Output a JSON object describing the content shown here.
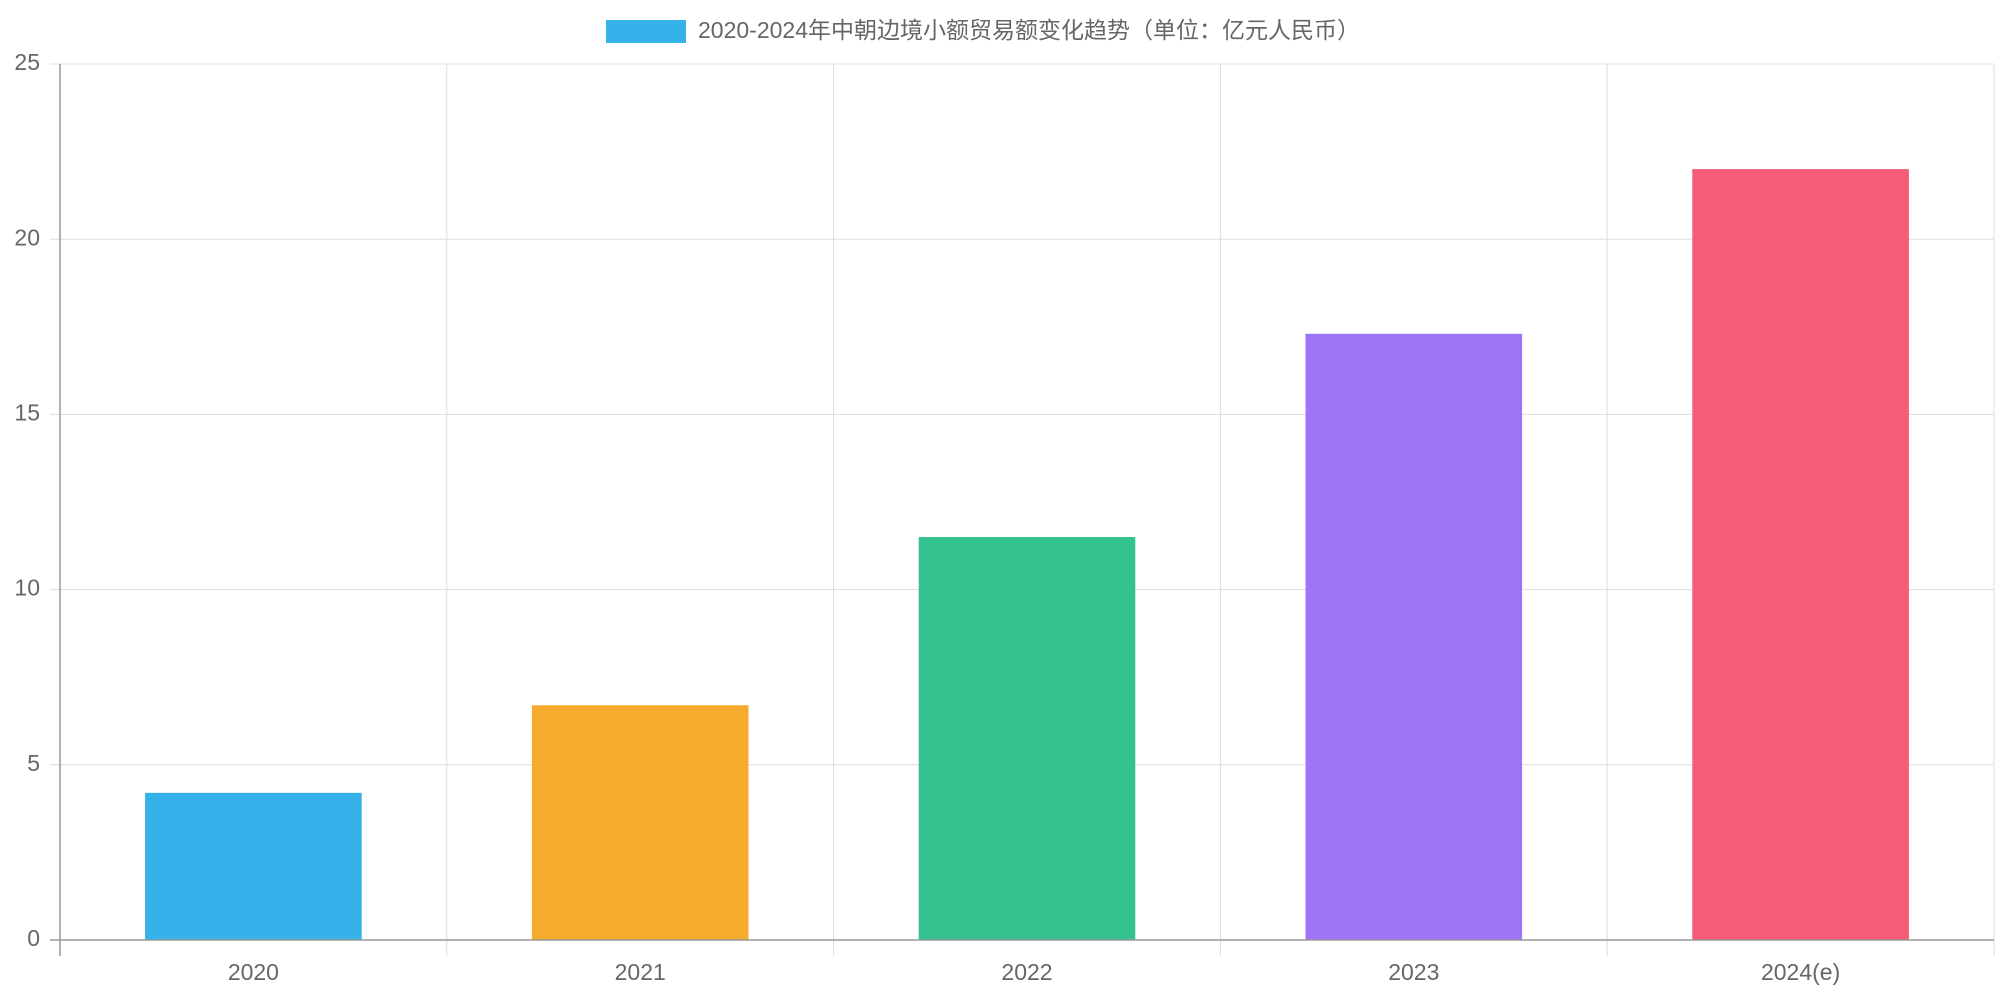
{
  "chart_data": {
    "type": "bar",
    "categories": [
      "2020",
      "2021",
      "2022",
      "2023",
      "2024(e)"
    ],
    "series": [
      {
        "name": "2020-2024年中朝边境小额贸易额变化趋势（单位：亿元人民币）",
        "colors": [
          "#36b2ea",
          "#f6ab2f",
          "#34c38f",
          "#9b75f6",
          "#f55c77"
        ],
        "values": [
          4.2,
          6.7,
          11.5,
          17.3,
          22.0
        ]
      }
    ],
    "ylim": [
      0,
      25
    ],
    "yticks": [
      0,
      5,
      10,
      15,
      20,
      25
    ],
    "grid": true
  }
}
